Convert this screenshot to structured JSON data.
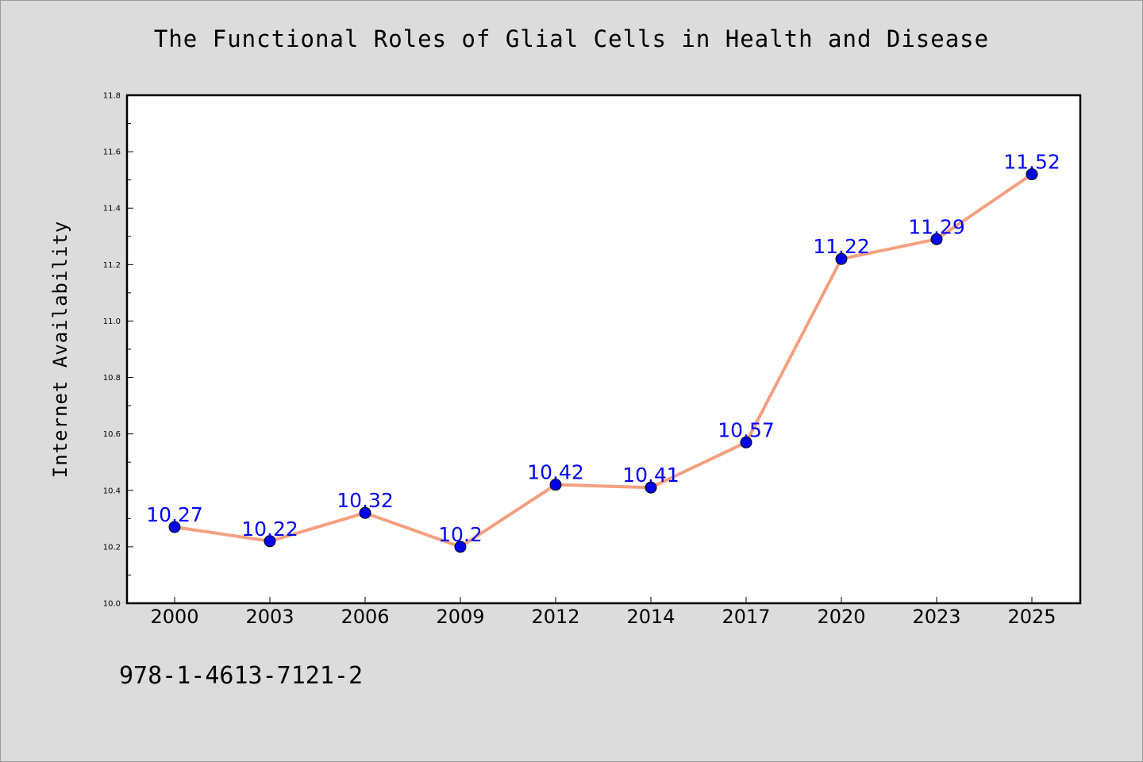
{
  "chart_data": {
    "type": "line",
    "title": "The Functional Roles of Glial Cells in Health and Disease",
    "xlabel": "",
    "ylabel": "Internet Availability",
    "categories": [
      "2000",
      "2003",
      "2006",
      "2009",
      "2012",
      "2014",
      "2017",
      "2020",
      "2023",
      "2025"
    ],
    "series": [
      {
        "values": [
          10.27,
          10.22,
          10.32,
          10.2,
          10.42,
          10.41,
          10.57,
          11.22,
          11.29,
          11.52
        ],
        "data_labels": [
          "10.27",
          "10.22",
          "10.32",
          "10.2",
          "10.42",
          "10.41",
          "10.57",
          "11.22",
          "11.29",
          "11.52"
        ]
      }
    ],
    "ylim": [
      10.0,
      11.8
    ],
    "yticks": [
      "10.0",
      "10.2",
      "10.4",
      "10.6",
      "10.8",
      "11.0",
      "11.2",
      "11.4",
      "11.6",
      "11.8"
    ],
    "grid": false,
    "legend": "none",
    "colors": {
      "line": "#f4a080",
      "marker_fill": "#0000ee",
      "marker_edge": "#000000",
      "data_label": "#0000ff",
      "plot_background": "#ffffff",
      "page_background": "#dcdcdc"
    }
  },
  "footer": {
    "note": "978-1-4613-7121-2"
  }
}
